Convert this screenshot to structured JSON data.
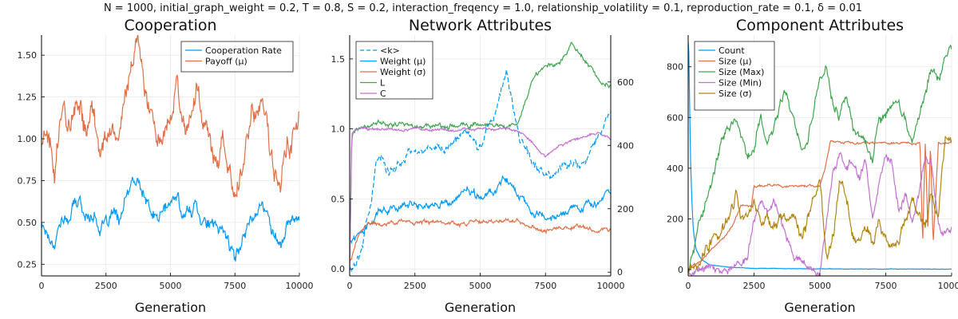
{
  "figure": {
    "supertitle": "N = 1000, initial_graph_weight = 0.2, T = 0.8, S = 0.2, interaction_freqency = 1.0, relationship_volatility = 0.1, reproduction_rate = 0.1, δ = 0.01"
  },
  "chart_data": [
    {
      "type": "line",
      "title": "Cooperation",
      "xlabel": "Generation",
      "xlim": [
        0,
        10000
      ],
      "ylim": [
        0.18,
        1.62
      ],
      "xticks": [
        0,
        2500,
        5000,
        7500,
        10000
      ],
      "yticks": [
        0.25,
        0.5,
        0.75,
        1.0,
        1.25,
        1.5
      ],
      "ytick_labels": [
        "0.25",
        "0.50",
        "0.75",
        "1.00",
        "1.25",
        "1.50"
      ],
      "legend": "top-right",
      "grid": true,
      "series": [
        {
          "name": "Cooperation Rate",
          "color": "#009af9",
          "axis": "left",
          "x": [
            0,
            250,
            500,
            750,
            1000,
            1250,
            1500,
            1750,
            2000,
            2250,
            2500,
            2750,
            3000,
            3250,
            3500,
            3750,
            4000,
            4250,
            4500,
            4750,
            5000,
            5250,
            5500,
            5750,
            6000,
            6250,
            6500,
            6750,
            7000,
            7250,
            7500,
            7750,
            8000,
            8250,
            8500,
            8750,
            9000,
            9250,
            9500,
            9750,
            10000
          ],
          "y": [
            0.5,
            0.43,
            0.38,
            0.52,
            0.5,
            0.6,
            0.62,
            0.52,
            0.57,
            0.47,
            0.47,
            0.55,
            0.5,
            0.62,
            0.72,
            0.74,
            0.65,
            0.55,
            0.52,
            0.58,
            0.6,
            0.65,
            0.55,
            0.55,
            0.62,
            0.52,
            0.5,
            0.45,
            0.47,
            0.4,
            0.27,
            0.38,
            0.5,
            0.57,
            0.6,
            0.55,
            0.45,
            0.35,
            0.48,
            0.5,
            0.55
          ]
        },
        {
          "name": "Payoff (μ)",
          "color": "#e26f46",
          "axis": "left",
          "x": [
            0,
            250,
            500,
            750,
            1000,
            1250,
            1500,
            1750,
            2000,
            2250,
            2500,
            2750,
            3000,
            3250,
            3500,
            3750,
            4000,
            4250,
            4500,
            4750,
            5000,
            5250,
            5500,
            5750,
            6000,
            6250,
            6500,
            6750,
            7000,
            7250,
            7500,
            7750,
            8000,
            8250,
            8500,
            8750,
            9000,
            9250,
            9500,
            9750,
            10000
          ],
          "y": [
            1.0,
            1.05,
            0.78,
            1.2,
            1.1,
            1.15,
            1.2,
            1.05,
            1.18,
            0.95,
            0.95,
            1.05,
            1.0,
            1.3,
            1.45,
            1.55,
            1.3,
            1.15,
            1.05,
            1.1,
            1.2,
            1.35,
            1.1,
            1.1,
            1.25,
            1.05,
            1.0,
            0.9,
            0.95,
            0.85,
            0.55,
            0.8,
            1.05,
            1.2,
            1.2,
            1.1,
            0.85,
            0.65,
            0.95,
            1.05,
            1.1
          ]
        }
      ]
    },
    {
      "type": "line",
      "title": "Network Attributes",
      "xlabel": "Generation",
      "xlim": [
        0,
        10000
      ],
      "ylim": [
        -0.05,
        1.67
      ],
      "y2lim": [
        -12,
        748
      ],
      "xticks": [
        0,
        2500,
        5000,
        7500,
        10000
      ],
      "yticks": [
        0.0,
        0.5,
        1.0,
        1.5
      ],
      "ytick_labels": [
        "0.0",
        "0.5",
        "1.0",
        "1.5"
      ],
      "y2ticks": [
        0,
        200,
        400,
        600
      ],
      "y2tick_labels": [
        "0",
        "200",
        "400",
        "600"
      ],
      "legend": "top-left",
      "grid": true,
      "series": [
        {
          "name": "Weight (μ)",
          "color": "#009af9",
          "axis": "left",
          "x": [
            0,
            250,
            500,
            750,
            1000,
            1250,
            1500,
            1750,
            2000,
            2500,
            3000,
            3500,
            4000,
            4500,
            5000,
            5500,
            6000,
            6250,
            6500,
            7000,
            7500,
            8000,
            8500,
            9000,
            9500,
            9800,
            10000
          ],
          "y": [
            0.2,
            0.22,
            0.28,
            0.35,
            0.4,
            0.42,
            0.43,
            0.45,
            0.45,
            0.46,
            0.45,
            0.47,
            0.48,
            0.55,
            0.5,
            0.55,
            0.65,
            0.6,
            0.5,
            0.42,
            0.38,
            0.4,
            0.45,
            0.46,
            0.47,
            0.52,
            0.52
          ]
        },
        {
          "name": "Weight (σ)",
          "color": "#e26f46",
          "axis": "left",
          "x": [
            0,
            250,
            500,
            750,
            1000,
            1250,
            1500,
            2000,
            2500,
            3000,
            3500,
            4000,
            4500,
            5000,
            5500,
            6000,
            6500,
            7000,
            7500,
            8000,
            8500,
            9000,
            9500,
            10000
          ],
          "y": [
            0.05,
            0.2,
            0.28,
            0.32,
            0.33,
            0.32,
            0.33,
            0.35,
            0.32,
            0.33,
            0.34,
            0.33,
            0.33,
            0.35,
            0.35,
            0.34,
            0.33,
            0.3,
            0.27,
            0.29,
            0.3,
            0.3,
            0.27,
            0.29
          ]
        },
        {
          "name": "L",
          "color": "#3ea44e",
          "axis": "left",
          "x": [
            0,
            80,
            150,
            250,
            500,
            1000,
            1500,
            2000,
            2500,
            3000,
            3500,
            4000,
            4500,
            5000,
            5500,
            6000,
            6500,
            7000,
            7500,
            8000,
            8500,
            9000,
            9500,
            10000
          ],
          "y": [
            0.0,
            0.95,
            0.99,
            1.0,
            1.01,
            1.05,
            1.03,
            1.04,
            1.02,
            1.03,
            1.02,
            1.02,
            1.02,
            1.04,
            1.02,
            1.01,
            1.05,
            1.35,
            1.45,
            1.45,
            1.6,
            1.5,
            1.35,
            1.3
          ]
        },
        {
          "name": "C",
          "color": "#c271d2",
          "axis": "left",
          "x": [
            0,
            80,
            150,
            250,
            500,
            1000,
            1500,
            2000,
            2500,
            3000,
            3500,
            4000,
            4500,
            5000,
            5500,
            6000,
            6500,
            7000,
            7500,
            8000,
            8500,
            9000,
            9500,
            10000
          ],
          "y": [
            0.0,
            0.97,
            0.99,
            1.0,
            1.0,
            1.0,
            1.0,
            0.99,
            1.0,
            0.99,
            1.0,
            0.99,
            1.0,
            1.0,
            1.0,
            1.0,
            0.98,
            0.9,
            0.8,
            0.88,
            0.92,
            0.95,
            0.97,
            0.93
          ]
        },
        {
          "name": "<k>",
          "color": "#009af9",
          "axis": "right",
          "dash": true,
          "x": [
            0,
            250,
            500,
            750,
            1000,
            1250,
            1500,
            1750,
            2000,
            2250,
            2500,
            3000,
            3500,
            4000,
            4500,
            5000,
            5250,
            5500,
            5750,
            6000,
            6250,
            6500,
            6750,
            7000,
            7500,
            7750,
            8000,
            8500,
            9000,
            9500,
            9750,
            10000
          ],
          "y": [
            10,
            40,
            90,
            200,
            340,
            350,
            320,
            330,
            350,
            380,
            370,
            390,
            390,
            410,
            450,
            390,
            470,
            480,
            560,
            640,
            520,
            430,
            390,
            350,
            310,
            300,
            330,
            350,
            340,
            420,
            470,
            510
          ]
        }
      ]
    },
    {
      "type": "line",
      "title": "Component Attributes",
      "xlabel": "Generation",
      "xlim": [
        0,
        10000
      ],
      "ylim": [
        -25,
        925
      ],
      "xticks": [
        0,
        2500,
        5000,
        7500,
        10000
      ],
      "yticks": [
        0,
        200,
        400,
        600,
        800
      ],
      "ytick_labels": [
        "0",
        "200",
        "400",
        "600",
        "800"
      ],
      "legend": "top-left",
      "grid": true,
      "series": [
        {
          "name": "Count",
          "color": "#009af9",
          "axis": "left",
          "x": [
            0,
            30,
            60,
            100,
            150,
            200,
            300,
            500,
            800,
            1500,
            2500,
            5000,
            7500,
            10000
          ],
          "y": [
            900,
            850,
            600,
            400,
            250,
            150,
            80,
            40,
            20,
            10,
            5,
            3,
            2,
            2
          ]
        },
        {
          "name": "Size (μ)",
          "color": "#e26f46",
          "axis": "left",
          "x": [
            0,
            500,
            1000,
            1500,
            1800,
            2000,
            2400,
            2500,
            3000,
            3500,
            4000,
            4500,
            5000,
            5200,
            5400,
            6000,
            7000,
            8000,
            8500,
            8800,
            8900,
            9000,
            9100,
            9200,
            9300,
            9500,
            10000
          ],
          "y": [
            0,
            40,
            90,
            140,
            200,
            250,
            250,
            330,
            330,
            330,
            330,
            330,
            330,
            400,
            500,
            500,
            500,
            500,
            500,
            500,
            100,
            500,
            150,
            500,
            100,
            500,
            500
          ]
        },
        {
          "name": "Size (Max)",
          "color": "#3ea44e",
          "axis": "left",
          "x": [
            0,
            250,
            500,
            750,
            1000,
            1250,
            1500,
            1750,
            2000,
            2250,
            2500,
            2750,
            3000,
            3250,
            3500,
            3750,
            4000,
            4250,
            4500,
            4750,
            5000,
            5250,
            5500,
            5750,
            6000,
            6250,
            6500,
            6750,
            7000,
            7250,
            7500,
            7750,
            8000,
            8250,
            8500,
            8750,
            9000,
            9250,
            9500,
            9750,
            10000
          ],
          "y": [
            0,
            80,
            200,
            300,
            400,
            500,
            560,
            600,
            540,
            440,
            460,
            600,
            500,
            560,
            650,
            700,
            600,
            500,
            500,
            600,
            750,
            800,
            650,
            600,
            700,
            560,
            520,
            500,
            450,
            600,
            600,
            640,
            640,
            580,
            500,
            600,
            700,
            800,
            750,
            820,
            860
          ]
        },
        {
          "name": "Size (Min)",
          "color": "#c271d2",
          "axis": "left",
          "x": [
            0,
            500,
            1000,
            1500,
            2000,
            2250,
            2500,
            2750,
            3000,
            3250,
            3500,
            4000,
            4500,
            5000,
            5250,
            5500,
            5750,
            6000,
            6250,
            6500,
            6750,
            7000,
            7250,
            7500,
            7750,
            8000,
            8250,
            8500,
            8750,
            9000,
            9250,
            9500,
            9750,
            10000
          ],
          "y": [
            0,
            0,
            0,
            0,
            0,
            50,
            200,
            250,
            220,
            270,
            200,
            50,
            30,
            0,
            200,
            400,
            450,
            400,
            430,
            380,
            420,
            200,
            350,
            450,
            420,
            250,
            300,
            200,
            300,
            450,
            400,
            180,
            150,
            170
          ]
        },
        {
          "name": "Size (σ)",
          "color": "#b1860f",
          "axis": "left",
          "x": [
            0,
            500,
            1000,
            1500,
            1800,
            2000,
            2250,
            2500,
            2750,
            3000,
            3250,
            3500,
            3750,
            4000,
            4250,
            4500,
            4750,
            5000,
            5250,
            5500,
            5750,
            6000,
            6250,
            6500,
            6750,
            7000,
            7250,
            7500,
            7750,
            8000,
            8250,
            8500,
            8750,
            9000,
            9250,
            9500,
            9750,
            10000
          ],
          "y": [
            0,
            60,
            120,
            180,
            300,
            200,
            210,
            250,
            180,
            200,
            170,
            220,
            180,
            200,
            150,
            180,
            250,
            350,
            50,
            120,
            350,
            300,
            150,
            100,
            150,
            100,
            180,
            100,
            80,
            100,
            200,
            300,
            250,
            180,
            300,
            200,
            500,
            520
          ]
        }
      ]
    }
  ]
}
